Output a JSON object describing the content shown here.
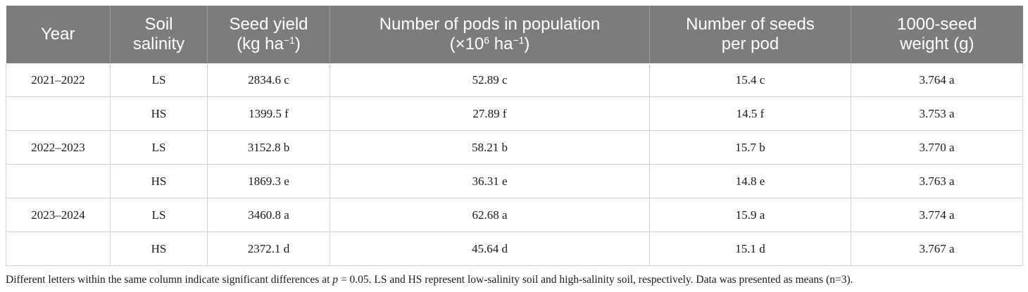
{
  "headers": {
    "year": "Year",
    "soil_l1": "Soil",
    "soil_l2": "salinity",
    "yield_l1": "Seed yield",
    "yield_unit_a": "(kg ha",
    "yield_unit_sup": "−1",
    "yield_unit_b": ")",
    "pods_l1": "Number of pods in population",
    "pods_unit_a": "(×10",
    "pods_unit_sup1": "6",
    "pods_unit_mid": " ha",
    "pods_unit_sup2": "−1",
    "pods_unit_b": ")",
    "seeds_l1": "Number of seeds",
    "seeds_l2": "per pod",
    "weight_l1": "1000-seed",
    "weight_l2": "weight (g)"
  },
  "rows": [
    {
      "year": "2021–2022",
      "salinity": "LS",
      "yield": "2834.6 c",
      "pods": "52.89 c",
      "seeds": "15.4 c",
      "weight": "3.764 a"
    },
    {
      "year": "",
      "salinity": "HS",
      "yield": "1399.5 f",
      "pods": "27.89 f",
      "seeds": "14.5 f",
      "weight": "3.753 a"
    },
    {
      "year": "2022–2023",
      "salinity": "LS",
      "yield": "3152.8 b",
      "pods": "58.21 b",
      "seeds": "15.7 b",
      "weight": "3.770 a"
    },
    {
      "year": "",
      "salinity": "HS",
      "yield": "1869.3 e",
      "pods": "36.31 e",
      "seeds": "14.8 e",
      "weight": "3.763 a"
    },
    {
      "year": "2023–2024",
      "salinity": "LS",
      "yield": "3460.8 a",
      "pods": "62.68 a",
      "seeds": "15.9 a",
      "weight": "3.774 a"
    },
    {
      "year": "",
      "salinity": "HS",
      "yield": "2372.1 d",
      "pods": "45.64 d",
      "seeds": "15.1 d",
      "weight": "3.767 a"
    }
  ],
  "footnote": {
    "part1": "Different letters within the same column indicate significant differences at ",
    "p_symbol": "p",
    "part2": " = 0.05. LS and HS represent low-salinity soil and high-salinity soil, respectively. Data was presented as means (n=3)."
  }
}
